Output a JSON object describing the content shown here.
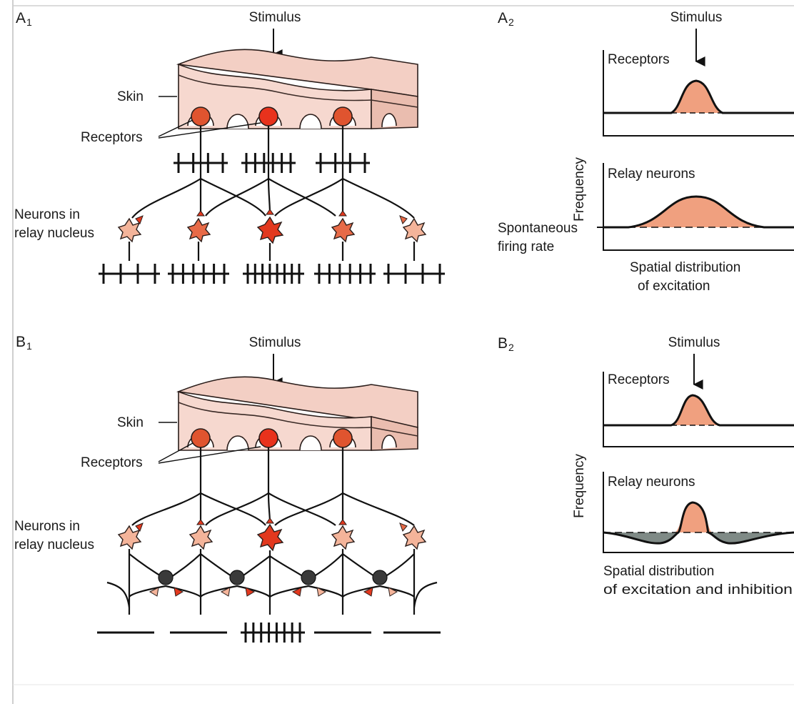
{
  "colors": {
    "skin": "#f6d8cf",
    "skin_side": "#eabdaf",
    "receptor_bright": "#e8321c",
    "receptor": "#e0542f",
    "neuron_light": "#f4b49a",
    "neuron_mid": "#e76a47",
    "neuron_bright": "#e2381e",
    "inhibitory": "#3a3a3a",
    "excitation_fill": "#f0a07f",
    "inhibition_fill": "#7f8a86"
  },
  "panel_a1": {
    "panel_letter": "A",
    "panel_sub": "1",
    "stimulus_label": "Stimulus",
    "skin_label": "Skin",
    "receptors_label": "Receptors",
    "relay_label_line1": "Neurons in",
    "relay_label_line2": "relay nucleus",
    "receptor_spike_counts": [
      4,
      6,
      4
    ],
    "relay_spike_counts": [
      4,
      6,
      8,
      6,
      4
    ]
  },
  "panel_a2": {
    "panel_letter": "A",
    "panel_sub": "2",
    "stimulus_label": "Stimulus",
    "receptors_plot_label": "Receptors",
    "relay_plot_label": "Relay neurons",
    "y_axis_label": "Frequency",
    "baseline_label_line1": "Spontaneous",
    "baseline_label_line2": "firing rate",
    "x_axis_label_line1": "Spatial distribution",
    "x_axis_label_line2": "of excitation"
  },
  "panel_b1": {
    "panel_letter": "B",
    "panel_sub": "1",
    "stimulus_label": "Stimulus",
    "skin_label": "Skin",
    "receptors_label": "Receptors",
    "relay_label_line1": "Neurons in",
    "relay_label_line2": "relay nucleus",
    "output_spike_count": 8
  },
  "panel_b2": {
    "panel_letter": "B",
    "panel_sub": "2",
    "stimulus_label": "Stimulus",
    "receptors_plot_label": "Receptors",
    "relay_plot_label": "Relay neurons",
    "y_axis_label": "Frequency",
    "x_axis_label_line1": "Spatial distribution",
    "x_axis_label_line2": "of excitation and inhibition"
  }
}
